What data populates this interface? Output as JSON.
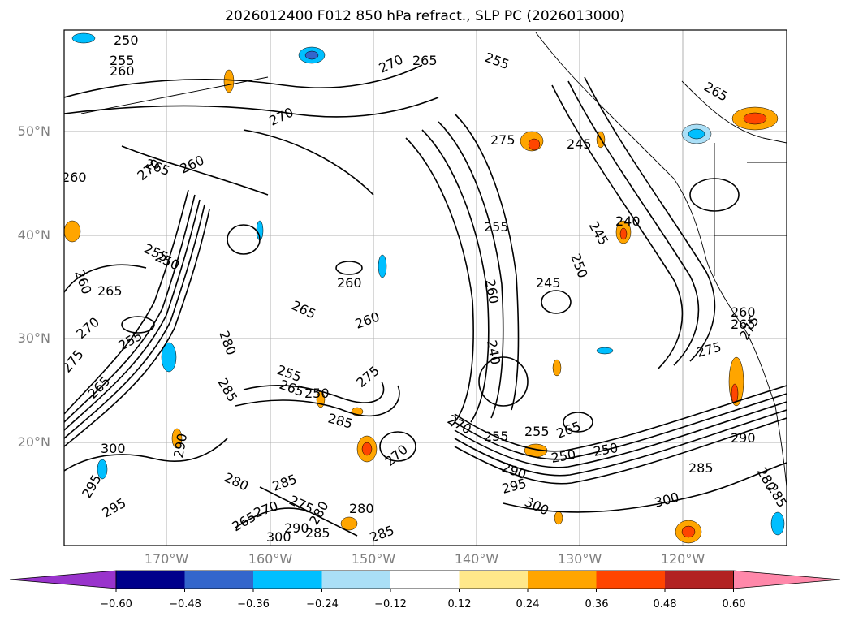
{
  "title": "2026012400 F012 850 hPa refract., SLP PC (2026013000)",
  "lat_ticks": [
    "50°N",
    "40°N",
    "30°N",
    "20°N"
  ],
  "lon_ticks": [
    "170°W",
    "160°W",
    "150°W",
    "140°W",
    "130°W",
    "120°W"
  ],
  "colorbar": {
    "labels": [
      "−0.60",
      "−0.48",
      "−0.36",
      "−0.24",
      "−0.12",
      "0.12",
      "0.24",
      "0.36",
      "0.48",
      "0.60"
    ],
    "colors": [
      "#9933cc",
      "#00008b",
      "#3366cc",
      "#00bfff",
      "#aadff7",
      "#ffffff",
      "#ffe88a",
      "#ffa500",
      "#ff4500",
      "#b22222",
      "#ff88aa"
    ]
  },
  "contour_labels": [
    "250",
    "255",
    "260",
    "265",
    "270",
    "275",
    "280",
    "285",
    "290",
    "295",
    "300",
    "245",
    "240"
  ],
  "map_features": [
    "coastline-icon",
    "graticule",
    "refractivity-contours",
    "slp-shading"
  ]
}
